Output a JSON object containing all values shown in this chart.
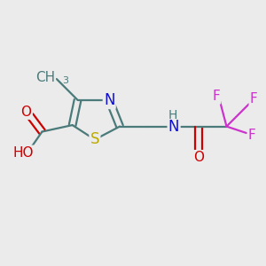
{
  "background_color": "#ebebeb",
  "bond_color": "#4a7a7a",
  "bond_width": 1.6,
  "atom_colors": {
    "C": "#4a7a7a",
    "N": "#1010cc",
    "S": "#bbaa00",
    "O": "#cc0000",
    "F": "#cc33cc",
    "HO": "#cc0000"
  },
  "font_size": 11
}
